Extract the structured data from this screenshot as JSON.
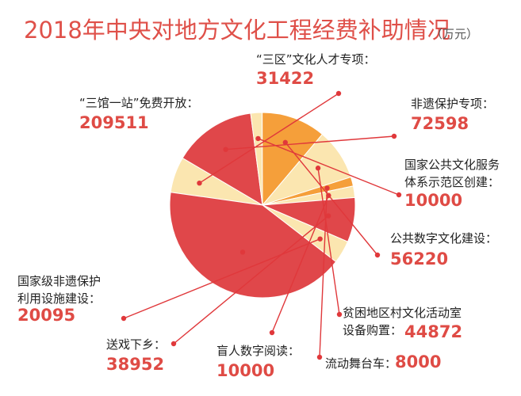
{
  "chart_data": {
    "type": "pie",
    "title": "2018年中央对地方文化工程经费补助情况",
    "unit": "（万元）",
    "colors": {
      "red": "#e0474a",
      "cream": "#fbe6b0",
      "orange": "#f59f3a"
    },
    "slices": [
      {
        "label": "“三区”文化人才专项：",
        "value": 31422,
        "value_text": "31422",
        "color": "#fbe6b0"
      },
      {
        "label": "非遗保护专项：",
        "value": 72598,
        "value_text": "72598",
        "color": "#e0474a"
      },
      {
        "label": "国家公共文化服务体系示范区创建：",
        "label_lines": [
          "国家公共文化服务",
          "体系示范区创建："
        ],
        "value": 10000,
        "value_text": "10000",
        "color": "#fbe6b0"
      },
      {
        "label": "公共数字文化建设：",
        "value": 56220,
        "value_text": "56220",
        "color": "#f59f3a"
      },
      {
        "label": "贫困地区村文化活动室设备购置：",
        "label_lines": [
          "贫困地区村文化活动室",
          "设备购置："
        ],
        "value": 44872,
        "value_text": "44872",
        "color": "#fbe6b0"
      },
      {
        "label": "流动舞台车：",
        "value": 8000,
        "value_text": "8000",
        "color": "#f59f3a"
      },
      {
        "label": "盲人数字阅读：",
        "value": 10000,
        "value_text": "10000",
        "color": "#fbe6b0"
      },
      {
        "label": "送戏下乡：",
        "value": 38952,
        "value_text": "38952",
        "color": "#e0474a"
      },
      {
        "label": "国家级非遗保护利用设施建设：",
        "label_lines": [
          "国家级非遗保护",
          "利用设施建设："
        ],
        "value": 20095,
        "value_text": "20095",
        "color": "#fbe6b0"
      },
      {
        "label": "“三馆一站”免费开放：",
        "value": 209511,
        "value_text": "209511",
        "color": "#e0474a"
      }
    ]
  }
}
